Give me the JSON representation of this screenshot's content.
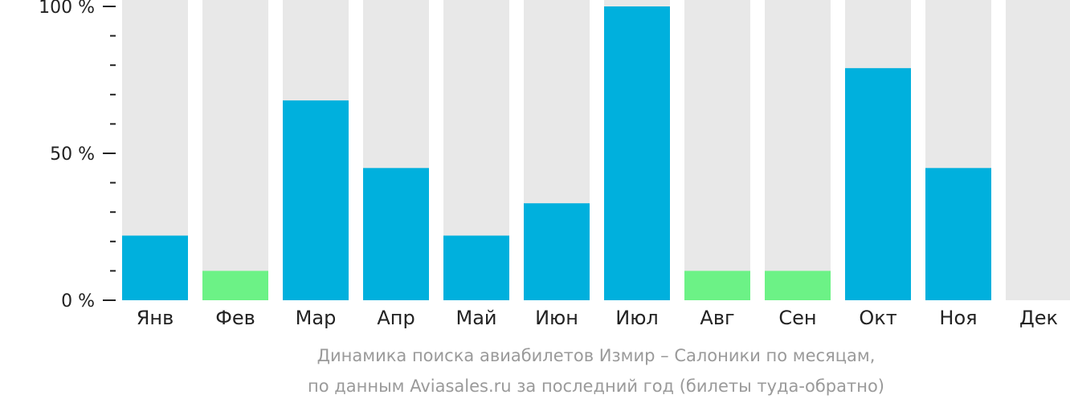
{
  "chart_data": {
    "type": "bar",
    "categories": [
      "Янв",
      "Фев",
      "Мар",
      "Апр",
      "Май",
      "Июн",
      "Июл",
      "Авг",
      "Сен",
      "Окт",
      "Ноя",
      "Дек"
    ],
    "values": [
      22,
      10,
      68,
      45,
      22,
      33,
      100,
      10,
      10,
      79,
      45,
      0
    ],
    "max_value": 100,
    "ylim": [
      0,
      100
    ],
    "y_ticks": [
      {
        "value": 0,
        "label": "0 %"
      },
      {
        "value": 50,
        "label": "50 %"
      },
      {
        "value": 100,
        "label": "100 %"
      }
    ],
    "y_minor_ticks": [
      10,
      20,
      30,
      40,
      60,
      70,
      80,
      90
    ],
    "low_threshold": 15,
    "colors": {
      "bar": "#00b0dd",
      "bar_low": "#6cf286",
      "background_bar": "#e8e8e8",
      "axis": "#222222",
      "caption": "#9a9a9a"
    },
    "grid": false,
    "legend": "none",
    "caption_lines": [
      "Динамика поиска авиабилетов Измир – Салоники по месяцам,",
      "по данным Aviasales.ru за последний год (билеты туда-обратно)"
    ]
  }
}
